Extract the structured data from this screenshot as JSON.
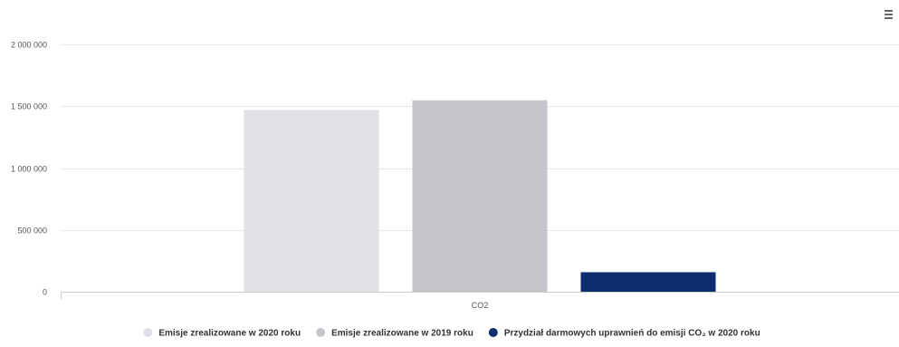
{
  "menu": {
    "icon": "hamburger-menu-icon"
  },
  "chart_data": {
    "type": "bar",
    "categories": [
      "CO2"
    ],
    "series": [
      {
        "name": "Emisje zrealizowane w 2020 roku",
        "values": [
          1470000
        ],
        "color": "#e0e1e6"
      },
      {
        "name": "Emisje zrealizowane w 2019 roku",
        "values": [
          1548000
        ],
        "color": "#c4c6cb"
      },
      {
        "name": "Przydział darmowych uprawnień do emisji CO₂ w 2020 roku",
        "values": [
          158000
        ],
        "color": "#0c2d6e"
      }
    ],
    "y_ticks": [
      0,
      500000,
      1000000,
      1500000,
      2000000
    ],
    "y_tick_labels": [
      "0",
      "500 000",
      "1 000 000",
      "1 500 000",
      "2 000 000"
    ],
    "ylim": [
      0,
      2000000
    ],
    "grid": true,
    "legend_position": "bottom"
  }
}
